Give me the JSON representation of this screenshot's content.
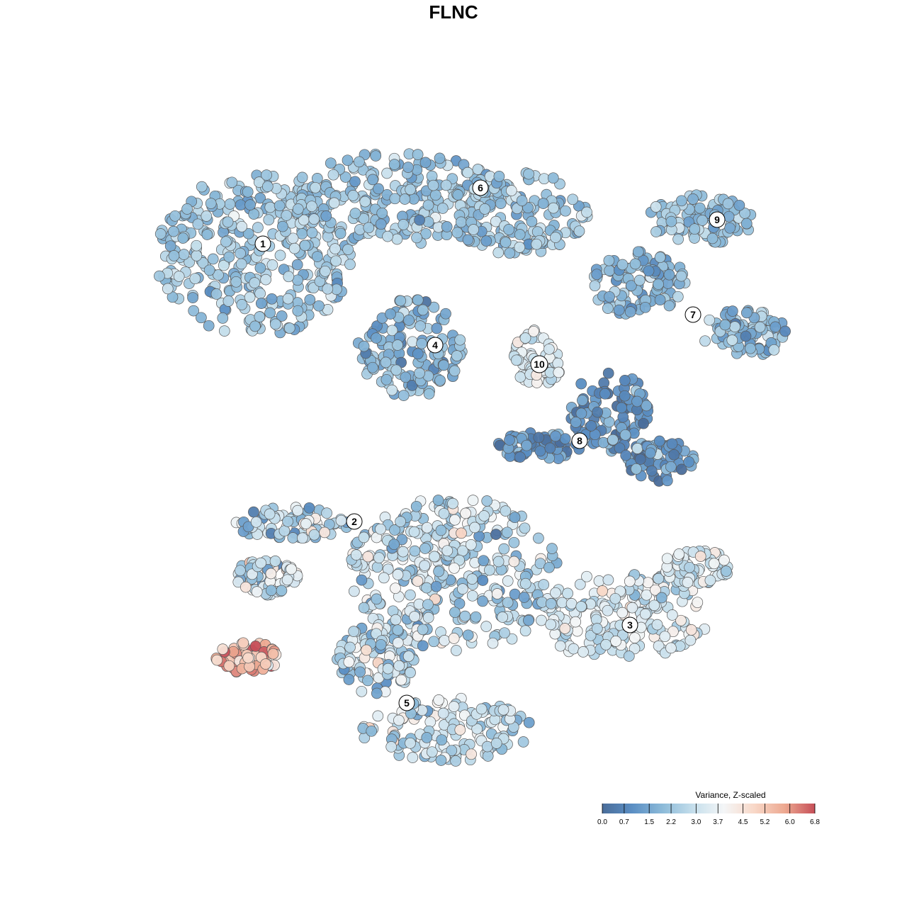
{
  "chart_data": {
    "type": "scatter",
    "title": "FLNC",
    "xlabel": "",
    "ylabel": "",
    "grid": false,
    "legend": {
      "title": "Variance, Z-scaled",
      "placement": "bottom-right",
      "ticks": [
        "0.0",
        "0.7",
        "1.5",
        "2.2",
        "3.0",
        "3.7",
        "4.5",
        "5.2",
        "6.0",
        "6.8"
      ],
      "range": [
        0.0,
        6.8
      ],
      "colors": [
        "#4a6d9a",
        "#5b8fc4",
        "#8dbbd9",
        "#c6dfec",
        "#f4f6f7",
        "#f8d8c8",
        "#eda991",
        "#c64f58"
      ]
    },
    "clusters": [
      {
        "label": "1",
        "center": [
          371,
          344
        ],
        "value_mean": 2.3,
        "value_sd": 0.55,
        "cloud": [
          [
            360,
            360,
            140,
            115
          ]
        ]
      },
      {
        "label": "6",
        "center": [
          678,
          265
        ],
        "value_mean": 2.2,
        "value_sd": 0.5,
        "cloud": [
          [
            560,
            280,
            150,
            65
          ],
          [
            730,
            300,
            100,
            60
          ]
        ]
      },
      {
        "label": "9",
        "center": [
          1012,
          310
        ],
        "value_mean": 2.1,
        "value_sd": 0.45,
        "cloud": [
          [
            990,
            310,
            80,
            35
          ]
        ]
      },
      {
        "label": "7",
        "center": [
          978,
          444
        ],
        "value_mean": 1.8,
        "value_sd": 0.55,
        "cloud": [
          [
            900,
            400,
            70,
            45
          ],
          [
            1050,
            470,
            60,
            35
          ]
        ]
      },
      {
        "label": "4",
        "center": [
          614,
          487
        ],
        "value_mean": 1.8,
        "value_sd": 0.6,
        "cloud": [
          [
            580,
            490,
            75,
            70
          ]
        ]
      },
      {
        "label": "10",
        "center": [
          761,
          514
        ],
        "value_mean": 3.4,
        "value_sd": 0.4,
        "cloud": [
          [
            760,
            505,
            35,
            40
          ]
        ]
      },
      {
        "label": "8",
        "center": [
          818,
          622
        ],
        "value_mean": 1.0,
        "value_sd": 0.6,
        "cloud": [
          [
            860,
            580,
            55,
            60
          ],
          [
            930,
            650,
            50,
            30
          ],
          [
            760,
            630,
            60,
            20
          ]
        ]
      },
      {
        "label": "2",
        "center": [
          500,
          736
        ],
        "value_mean": 2.8,
        "value_sd": 0.9,
        "cloud": [
          [
            410,
            740,
            80,
            25
          ],
          [
            375,
            815,
            45,
            25
          ]
        ]
      },
      {
        "label": "3",
        "center": [
          889,
          882
        ],
        "value_mean": 3.2,
        "value_sd": 0.65,
        "cloud": [
          [
            880,
            870,
            120,
            65
          ],
          [
            980,
            800,
            50,
            25
          ]
        ]
      },
      {
        "label": "5",
        "center": [
          574,
          992
        ],
        "value_mean": 2.7,
        "value_sd": 0.8,
        "cloud": [
          [
            640,
            810,
            150,
            110
          ],
          [
            630,
            1030,
            120,
            45
          ],
          [
            530,
            930,
            55,
            50
          ]
        ]
      },
      {
        "label": "",
        "center": [
          350,
          930
        ],
        "value_mean": 5.6,
        "value_sd": 0.9,
        "cloud": [
          [
            350,
            928,
            45,
            22
          ]
        ]
      }
    ]
  }
}
